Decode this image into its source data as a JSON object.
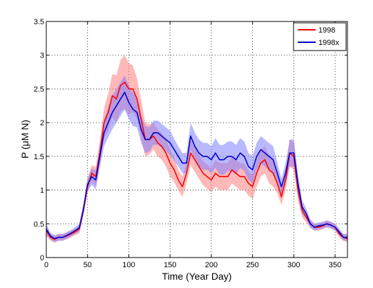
{
  "chart_data": {
    "type": "line",
    "xlabel": "Time (Year Day)",
    "ylabel": "P (μM N)",
    "xlim": [
      0,
      365
    ],
    "ylim": [
      0,
      3.5
    ],
    "xticks": [
      0,
      50,
      100,
      150,
      200,
      250,
      300,
      350
    ],
    "yticks": [
      0,
      0.5,
      1,
      1.5,
      2,
      2.5,
      3,
      3.5
    ],
    "grid": true,
    "legend_position": "top-right",
    "x": [
      0,
      5,
      10,
      15,
      20,
      25,
      30,
      35,
      40,
      45,
      50,
      55,
      60,
      65,
      70,
      75,
      80,
      85,
      90,
      95,
      100,
      105,
      110,
      115,
      120,
      125,
      130,
      135,
      140,
      145,
      150,
      155,
      160,
      165,
      170,
      175,
      180,
      185,
      190,
      195,
      200,
      205,
      210,
      215,
      220,
      225,
      230,
      235,
      240,
      245,
      250,
      255,
      260,
      265,
      270,
      275,
      280,
      285,
      290,
      295,
      300,
      305,
      310,
      315,
      320,
      325,
      330,
      335,
      340,
      345,
      350,
      355,
      360,
      365
    ],
    "series": [
      {
        "name": "1998",
        "color": "#ff0000",
        "band_color": "#ff8080",
        "values": [
          0.4,
          0.3,
          0.27,
          0.3,
          0.3,
          0.32,
          0.35,
          0.38,
          0.42,
          0.7,
          1.05,
          1.25,
          1.2,
          1.55,
          2.0,
          2.15,
          2.4,
          2.35,
          2.55,
          2.6,
          2.5,
          2.5,
          2.35,
          2.05,
          1.75,
          1.75,
          1.8,
          1.7,
          1.65,
          1.55,
          1.4,
          1.3,
          1.15,
          1.05,
          1.25,
          1.55,
          1.45,
          1.35,
          1.25,
          1.2,
          1.15,
          1.25,
          1.2,
          1.2,
          1.2,
          1.3,
          1.25,
          1.2,
          1.2,
          1.1,
          1.05,
          1.25,
          1.4,
          1.45,
          1.3,
          1.25,
          1.1,
          0.9,
          1.15,
          1.55,
          1.5,
          1.0,
          0.7,
          0.6,
          0.5,
          0.45,
          0.45,
          0.47,
          0.5,
          0.48,
          0.45,
          0.35,
          0.3,
          0.28
        ],
        "band": [
          0.08,
          0.05,
          0.05,
          0.05,
          0.05,
          0.05,
          0.05,
          0.05,
          0.06,
          0.08,
          0.1,
          0.12,
          0.14,
          0.18,
          0.22,
          0.28,
          0.32,
          0.35,
          0.38,
          0.4,
          0.38,
          0.35,
          0.3,
          0.28,
          0.25,
          0.22,
          0.2,
          0.2,
          0.2,
          0.2,
          0.2,
          0.18,
          0.15,
          0.15,
          0.15,
          0.18,
          0.18,
          0.18,
          0.18,
          0.18,
          0.18,
          0.2,
          0.2,
          0.2,
          0.2,
          0.2,
          0.2,
          0.2,
          0.2,
          0.18,
          0.18,
          0.2,
          0.2,
          0.2,
          0.2,
          0.2,
          0.15,
          0.12,
          0.15,
          0.2,
          0.2,
          0.15,
          0.1,
          0.08,
          0.06,
          0.05,
          0.05,
          0.05,
          0.05,
          0.05,
          0.05,
          0.05,
          0.05,
          0.05
        ]
      },
      {
        "name": "1998x",
        "color": "#0000cc",
        "band_color": "#8080ff",
        "values": [
          0.42,
          0.32,
          0.28,
          0.3,
          0.3,
          0.33,
          0.36,
          0.4,
          0.44,
          0.72,
          1.08,
          1.2,
          1.15,
          1.5,
          1.85,
          2.0,
          2.15,
          2.25,
          2.35,
          2.45,
          2.3,
          2.2,
          2.15,
          1.9,
          1.75,
          1.75,
          1.85,
          1.85,
          1.8,
          1.75,
          1.7,
          1.6,
          1.5,
          1.4,
          1.4,
          1.8,
          1.65,
          1.55,
          1.5,
          1.5,
          1.45,
          1.55,
          1.45,
          1.45,
          1.5,
          1.5,
          1.45,
          1.55,
          1.5,
          1.35,
          1.3,
          1.5,
          1.6,
          1.55,
          1.5,
          1.45,
          1.25,
          1.05,
          1.25,
          1.55,
          1.55,
          1.1,
          0.75,
          0.65,
          0.5,
          0.45,
          0.47,
          0.48,
          0.5,
          0.48,
          0.45,
          0.38,
          0.3,
          0.3
        ],
        "band": [
          0.08,
          0.05,
          0.05,
          0.05,
          0.05,
          0.05,
          0.05,
          0.05,
          0.06,
          0.08,
          0.1,
          0.12,
          0.14,
          0.16,
          0.2,
          0.22,
          0.25,
          0.25,
          0.25,
          0.25,
          0.25,
          0.25,
          0.22,
          0.2,
          0.2,
          0.18,
          0.18,
          0.18,
          0.18,
          0.18,
          0.18,
          0.16,
          0.15,
          0.15,
          0.15,
          0.2,
          0.2,
          0.2,
          0.2,
          0.2,
          0.2,
          0.22,
          0.22,
          0.22,
          0.22,
          0.22,
          0.22,
          0.22,
          0.22,
          0.2,
          0.2,
          0.2,
          0.2,
          0.2,
          0.2,
          0.2,
          0.16,
          0.12,
          0.15,
          0.2,
          0.2,
          0.15,
          0.1,
          0.08,
          0.06,
          0.05,
          0.05,
          0.05,
          0.05,
          0.05,
          0.05,
          0.05,
          0.05,
          0.05
        ]
      }
    ]
  }
}
